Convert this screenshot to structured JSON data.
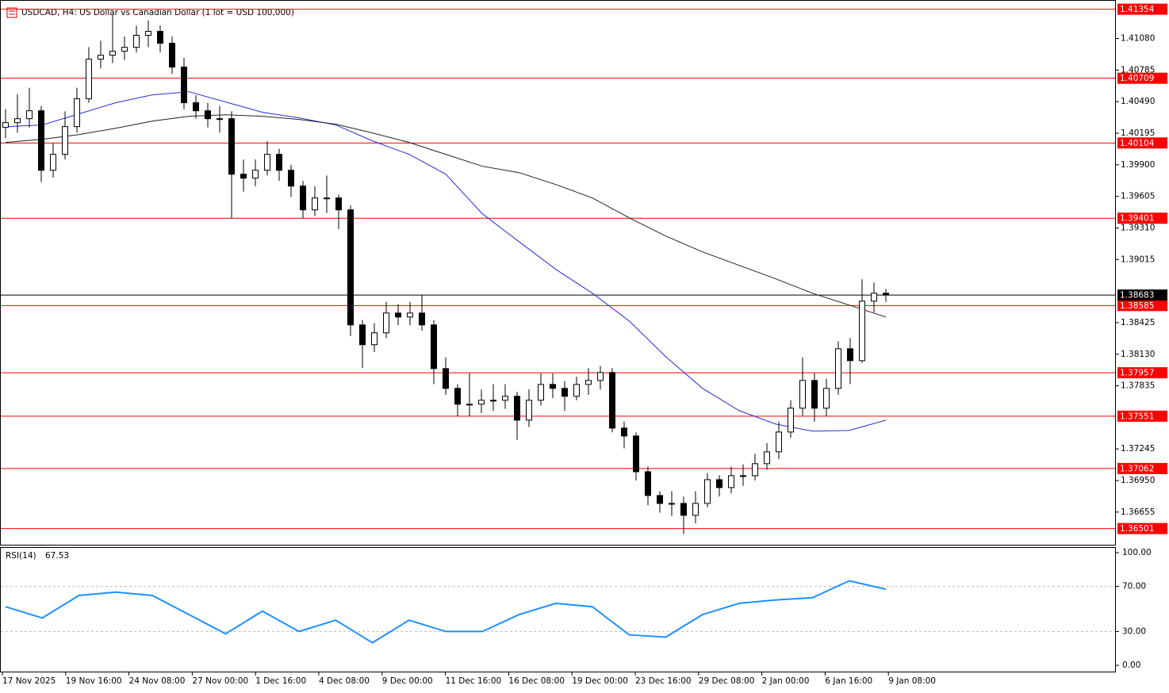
{
  "chart_data": {
    "type": "candlestick",
    "title": "USDCAD, H4:  US Dollar vs Canadian Dollar (1 lot = USD 100,000)",
    "open": [
      1.4025,
      1.40294,
      1.40331,
      1.40405,
      1.39849,
      1.39998,
      1.40257,
      1.40517,
      1.40887,
      1.40924,
      1.40961,
      1.40998,
      1.4111,
      1.41147,
      1.41036,
      1.40813,
      1.4048,
      1.40405,
      1.40331,
      1.40331,
      1.39812,
      1.39775,
      1.39849,
      1.39998,
      1.39849,
      1.39701,
      1.39479,
      1.3959,
      1.3959,
      1.39479,
      1.38404,
      1.38219,
      1.3833,
      1.38515,
      1.38478,
      1.38515,
      1.38404,
      1.37996,
      1.37811,
      1.37663,
      1.37663,
      1.377,
      1.377,
      1.37737,
      1.37514,
      1.377,
      1.37848,
      1.37811,
      1.37737,
      1.37848,
      1.37885,
      1.37959,
      1.3744,
      1.37366,
      1.37032,
      1.3681,
      1.36736,
      1.36736,
      1.36625,
      1.36736,
      1.36958,
      1.36884,
      1.36995,
      1.36995,
      1.37107,
      1.37218,
      1.37403,
      1.37626,
      1.37885,
      1.37626,
      1.37811,
      1.38181,
      1.3807,
      1.38626,
      1.387
    ],
    "high": [
      1.4042,
      1.4056,
      1.4062,
      1.4045,
      1.401,
      1.404,
      1.4062,
      1.41,
      1.4106,
      1.413,
      1.411,
      1.412,
      1.4125,
      1.412,
      1.411,
      1.409,
      1.4055,
      1.4048,
      1.4045,
      1.404,
      1.3995,
      1.3995,
      1.4012,
      1.4005,
      1.399,
      1.3975,
      1.397,
      1.398,
      1.3962,
      1.3952,
      1.3845,
      1.3842,
      1.3862,
      1.386,
      1.3862,
      1.3868,
      1.3845,
      1.381,
      1.3785,
      1.3795,
      1.378,
      1.3785,
      1.3785,
      1.3778,
      1.378,
      1.3795,
      1.3795,
      1.3788,
      1.3792,
      1.38,
      1.3802,
      1.38,
      1.375,
      1.374,
      1.3708,
      1.3685,
      1.3685,
      1.368,
      1.3685,
      1.3702,
      1.37,
      1.3708,
      1.371,
      1.372,
      1.373,
      1.375,
      1.377,
      1.381,
      1.3795,
      1.379,
      1.3825,
      1.3828,
      1.3883,
      1.388,
      1.3874
    ],
    "low": [
      1.4015,
      1.402,
      1.4025,
      1.3974,
      1.3978,
      1.3995,
      1.402,
      1.4048,
      1.408,
      1.4085,
      1.4088,
      1.4095,
      1.41,
      1.4095,
      1.4075,
      1.4042,
      1.4033,
      1.4025,
      1.402,
      1.394,
      1.3965,
      1.397,
      1.398,
      1.3975,
      1.396,
      1.394,
      1.3942,
      1.3945,
      1.393,
      1.383,
      1.38,
      1.3815,
      1.3828,
      1.384,
      1.384,
      1.3835,
      1.3785,
      1.3775,
      1.3755,
      1.3755,
      1.3758,
      1.376,
      1.3762,
      1.3733,
      1.3745,
      1.3765,
      1.3772,
      1.376,
      1.377,
      1.3775,
      1.378,
      1.374,
      1.3725,
      1.3695,
      1.3672,
      1.3665,
      1.3662,
      1.3645,
      1.3655,
      1.367,
      1.368,
      1.3683,
      1.369,
      1.3695,
      1.3705,
      1.3715,
      1.3735,
      1.3755,
      1.375,
      1.3755,
      1.3775,
      1.3785,
      1.3805,
      1.3852,
      1.3862
    ],
    "close": [
      1.40294,
      1.40331,
      1.40405,
      1.39849,
      1.39998,
      1.40257,
      1.40517,
      1.40887,
      1.40924,
      1.40961,
      1.40998,
      1.4111,
      1.41147,
      1.41036,
      1.40813,
      1.4048,
      1.40405,
      1.40331,
      1.40331,
      1.39812,
      1.39775,
      1.39849,
      1.39998,
      1.39849,
      1.39701,
      1.39479,
      1.3959,
      1.3959,
      1.39479,
      1.38404,
      1.38219,
      1.3833,
      1.38515,
      1.38478,
      1.38515,
      1.38404,
      1.37996,
      1.37811,
      1.37663,
      1.37663,
      1.377,
      1.377,
      1.37737,
      1.37514,
      1.377,
      1.37848,
      1.37811,
      1.37737,
      1.37848,
      1.37885,
      1.37959,
      1.3744,
      1.37366,
      1.37032,
      1.3681,
      1.36736,
      1.36736,
      1.36625,
      1.36736,
      1.36958,
      1.36884,
      1.36995,
      1.36995,
      1.37107,
      1.37218,
      1.37403,
      1.37626,
      1.37885,
      1.37626,
      1.37811,
      1.38181,
      1.3807,
      1.38626,
      1.387,
      1.38683
    ],
    "up_color": "#ffffff",
    "down_color": "#000000",
    "wick_color": "#000000",
    "ylim": [
      1.3635,
      1.4144
    ],
    "yticks": [
      {
        "value": 1.4108,
        "label": "1.41080"
      },
      1.40785,
      {
        "value": 1.4049,
        "label": "1.40490"
      },
      1.40195,
      {
        "value": 1.399,
        "label": "1.39900"
      },
      1.39605,
      {
        "value": 1.3931,
        "label": "1.39310"
      },
      1.39015,
      1.38425,
      {
        "value": 1.3813,
        "label": "1.38130"
      },
      1.37835,
      1.37245,
      {
        "value": 1.3695,
        "label": "1.36950"
      },
      1.36655
    ],
    "levels": {
      "color": "#ff0000",
      "values": [
        1.41354,
        1.40709,
        1.40104,
        1.39401,
        1.38585,
        1.37957,
        1.37551,
        1.37062,
        1.36501
      ]
    },
    "current_price": {
      "color": "#000000",
      "value": 1.38683
    },
    "moving_averages": [
      {
        "color": "#2b2bd9",
        "values": [
          1.40257,
          1.40272,
          1.40376,
          1.4048,
          1.40554,
          1.40583,
          1.40487,
          1.40391,
          1.40339,
          1.40272,
          1.40124,
          1.39998,
          1.39812,
          1.39442,
          1.39182,
          1.38923,
          1.387,
          1.38441,
          1.38107,
          1.37811,
          1.37603,
          1.37477,
          1.37411,
          1.37418,
          1.37514
        ]
      },
      {
        "color": "#222222",
        "values": [
          1.40109,
          1.40139,
          1.40183,
          1.40242,
          1.40309,
          1.40354,
          1.40368,
          1.40354,
          1.40324,
          1.4028,
          1.40198,
          1.40109,
          1.39998,
          1.39886,
          1.39827,
          1.39716,
          1.3959,
          1.39405,
          1.39234,
          1.39086,
          1.3896,
          1.38834,
          1.387,
          1.38589,
          1.38478
        ]
      }
    ],
    "indicator": {
      "type": "line",
      "name": "RSI(14)",
      "color": "#1e90ff",
      "values": [
        52,
        42,
        62,
        65,
        62,
        45,
        28,
        48,
        30,
        40,
        20,
        40,
        30,
        30,
        45,
        55,
        52,
        27,
        25,
        45,
        55,
        58,
        60,
        75,
        67.53
      ],
      "ylim": [
        -5.6,
        104.2
      ],
      "yticks": [
        {
          "value": 100,
          "label": "100.00"
        },
        {
          "value": 70,
          "label": "70.00"
        },
        {
          "value": 30,
          "label": "30.00"
        },
        {
          "value": 0,
          "label": "0.00"
        }
      ],
      "levels": [
        70,
        30
      ]
    },
    "time_labels": [
      "17 Nov 2025",
      "19 Nov 16:00",
      "24 Nov 08:00",
      "27 Nov 00:00",
      "1 Dec 16:00",
      "4 Dec 08:00",
      "9 Dec 00:00",
      "11 Dec 16:00",
      "16 Dec 08:00",
      "19 Dec 00:00",
      "23 Dec 16:00",
      "29 Dec 08:00",
      "2 Jan 00:00",
      "6 Jan 16:00",
      "9 Jan 08:00"
    ]
  }
}
